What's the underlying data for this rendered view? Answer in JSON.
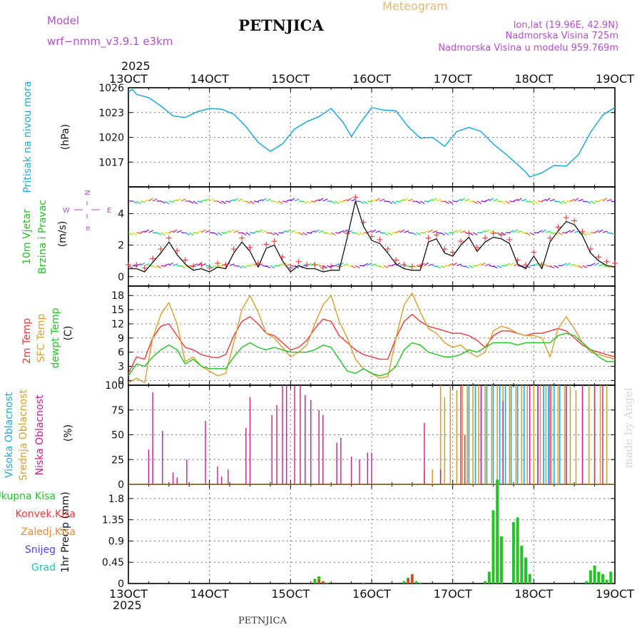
{
  "header": {
    "model_label": "Model",
    "model_name": "wrf−nmm_v3.9.1 e3km",
    "station": "PETNJICA",
    "meteogram_label": "Meteogram",
    "lonlat": "lon,lat (19.96E, 42.9N)",
    "altitude": "Nadmorska Visina 725m",
    "model_altitude": "Nadmorska Visina u modelu 959.769m",
    "footer_station": "PETNJICA",
    "credit": "made by Angel",
    "year": "2025"
  },
  "colors": {
    "pressure": "#1fa8e0",
    "temp2m": "#ee3a3a",
    "sfc": "#d8a030",
    "dewpt": "#22c422",
    "wind_obs": "#ee3a3a",
    "wind_line": "#000000",
    "cloud_high": "#1fa8e0",
    "cloud_mid": "#d8a030",
    "cloud_low": "#c81e8c",
    "precip_total": "#22c422",
    "precip_conv": "#ee3a3a",
    "precip_frozen": "#ee8833",
    "snow": "#4a44e0",
    "grad": "#22c0c0",
    "meta": "#b44fd0",
    "meteogram": "#e8b870"
  },
  "chart_data": {
    "type": "line",
    "x_ticks": [
      "13OCT",
      "14OCT",
      "15OCT",
      "16OCT",
      "17OCT",
      "18OCT",
      "19OCT"
    ],
    "x_range_days": [
      13,
      19
    ],
    "panels": [
      {
        "id": "pressure",
        "ylabel_1": "Pritisak na nivou mora",
        "ylabel_2": "(hPa)",
        "ylim": [
          1014,
          1026
        ],
        "yticks": [
          "1017",
          "1020",
          "1023",
          "1026"
        ],
        "series": [
          {
            "name": "Sea level pressure",
            "x": [
              13.0,
              13.05,
              13.1,
              13.25,
              13.4,
              13.55,
              13.7,
              13.85,
              14.0,
              14.15,
              14.3,
              14.45,
              14.6,
              14.75,
              14.9,
              15.05,
              15.2,
              15.35,
              15.5,
              15.65,
              15.75,
              15.85,
              16.0,
              16.15,
              16.3,
              16.45,
              16.6,
              16.75,
              16.9,
              17.05,
              17.2,
              17.35,
              17.5,
              17.65,
              17.8,
              17.9,
              17.95,
              18.1,
              18.25,
              18.4,
              18.55,
              18.7,
              18.85,
              19.0
            ],
            "y": [
              1025.5,
              1025.8,
              1025.2,
              1024.8,
              1023.8,
              1022.6,
              1022.4,
              1023.1,
              1023.5,
              1023.4,
              1022.8,
              1021.3,
              1019.4,
              1018.3,
              1019.2,
              1021.0,
              1021.9,
              1022.5,
              1023.5,
              1021.8,
              1020.1,
              1021.6,
              1023.6,
              1023.3,
              1023.2,
              1021.3,
              1019.9,
              1020.0,
              1018.9,
              1020.7,
              1021.2,
              1020.7,
              1019.2,
              1018.0,
              1016.7,
              1015.8,
              1015.2,
              1015.7,
              1016.6,
              1016.5,
              1017.9,
              1020.6,
              1022.7,
              1023.6
            ]
          }
        ]
      },
      {
        "id": "wind",
        "ylabel_1": "10m Vjetar",
        "ylabel_2": "Brzina i Pravac",
        "ylabel_3": "(m/s)",
        "ylim": [
          -0.6,
          5.7
        ],
        "yticks": [
          "0",
          "2",
          "4"
        ],
        "compass": "N",
        "compass_label_w": "W",
        "compass_label_e": "E",
        "compass_label_s": "α",
        "series": [
          {
            "name": "10m wind speed",
            "x": [
              13.0,
              13.1,
              13.2,
              13.3,
              13.4,
              13.5,
              13.6,
              13.7,
              13.8,
              13.9,
              14.0,
              14.1,
              14.2,
              14.3,
              14.4,
              14.5,
              14.6,
              14.7,
              14.8,
              14.9,
              15.0,
              15.1,
              15.2,
              15.3,
              15.4,
              15.5,
              15.6,
              15.7,
              15.8,
              15.9,
              16.0,
              16.1,
              16.2,
              16.3,
              16.4,
              16.5,
              16.6,
              16.7,
              16.8,
              16.9,
              17.0,
              17.1,
              17.2,
              17.3,
              17.4,
              17.5,
              17.6,
              17.7,
              17.8,
              17.9,
              18.0,
              18.1,
              18.2,
              18.3,
              18.4,
              18.5,
              18.6,
              18.7,
              18.8,
              18.9,
              19.0
            ],
            "y": [
              0.5,
              0.5,
              0.3,
              0.9,
              1.5,
              2.2,
              1.4,
              0.8,
              0.4,
              0.5,
              0.3,
              0.6,
              0.5,
              1.5,
              2.2,
              1.6,
              0.6,
              1.8,
              2.0,
              1.0,
              0.3,
              0.7,
              0.5,
              0.5,
              0.3,
              0.4,
              0.4,
              2.5,
              4.8,
              3.2,
              2.3,
              2.1,
              1.5,
              0.8,
              0.5,
              0.4,
              0.4,
              2.2,
              2.4,
              1.5,
              1.3,
              2.0,
              2.5,
              1.6,
              2.2,
              2.5,
              2.4,
              2.1,
              0.8,
              0.5,
              1.3,
              0.5,
              2.2,
              2.9,
              3.5,
              3.3,
              2.6,
              1.5,
              1.0,
              0.7,
              0.6
            ]
          }
        ]
      },
      {
        "id": "temperature",
        "ylabel_1": "2m Temp",
        "ylabel_2": "SFC Temp",
        "ylabel_3": "dewpt Temp",
        "ylabel_4": "(C)",
        "ylim": [
          -1,
          20
        ],
        "yticks": [
          "0",
          "3",
          "6",
          "9",
          "12",
          "15",
          "18"
        ],
        "series": [
          {
            "name": "2m Temp",
            "x": [
              13.0,
              13.1,
              13.2,
              13.3,
              13.4,
              13.5,
              13.6,
              13.7,
              13.8,
              13.9,
              14.0,
              14.1,
              14.2,
              14.3,
              14.4,
              14.5,
              14.6,
              14.7,
              14.8,
              14.9,
              15.0,
              15.1,
              15.2,
              15.3,
              15.4,
              15.5,
              15.6,
              15.7,
              15.8,
              15.9,
              16.0,
              16.1,
              16.2,
              16.3,
              16.4,
              16.5,
              16.6,
              16.7,
              16.8,
              16.9,
              17.0,
              17.1,
              17.2,
              17.3,
              17.4,
              17.5,
              17.6,
              17.7,
              17.8,
              17.9,
              18.0,
              18.1,
              18.2,
              18.3,
              18.4,
              18.5,
              18.6,
              18.7,
              18.8,
              18.9,
              19.0
            ],
            "y": [
              1.5,
              5.0,
              4.5,
              9.0,
              11.5,
              12.0,
              9.5,
              7.0,
              6.5,
              5.5,
              5.0,
              4.8,
              5.5,
              9.5,
              12.5,
              13.5,
              12.0,
              10.0,
              9.5,
              8.0,
              6.5,
              7.0,
              8.5,
              11.0,
              13.0,
              12.5,
              9.5,
              8.0,
              6.5,
              5.5,
              5.0,
              4.5,
              4.5,
              9.0,
              12.5,
              14.0,
              12.5,
              11.5,
              11.0,
              10.5,
              10.0,
              10.0,
              9.5,
              8.5,
              7.0,
              9.5,
              10.5,
              10.5,
              10.0,
              9.5,
              10.0,
              10.0,
              10.5,
              11.0,
              10.5,
              9.0,
              7.5,
              6.5,
              6.0,
              5.5,
              5.0
            ]
          },
          {
            "name": "SFC Temp",
            "x": [
              13.0,
              13.1,
              13.2,
              13.3,
              13.4,
              13.5,
              13.6,
              13.7,
              13.8,
              13.9,
              14.0,
              14.1,
              14.2,
              14.3,
              14.4,
              14.5,
              14.6,
              14.7,
              14.8,
              14.9,
              15.0,
              15.1,
              15.2,
              15.3,
              15.4,
              15.5,
              15.6,
              15.7,
              15.8,
              15.9,
              16.0,
              16.1,
              16.2,
              16.3,
              16.4,
              16.5,
              16.6,
              16.7,
              16.8,
              16.9,
              17.0,
              17.1,
              17.2,
              17.3,
              17.4,
              17.5,
              17.6,
              17.7,
              17.8,
              17.9,
              18.0,
              18.1,
              18.2,
              18.3,
              18.4,
              18.5,
              18.6,
              18.7,
              18.8,
              18.9,
              19.0
            ],
            "y": [
              -0.5,
              0.5,
              -0.5,
              9.0,
              14.0,
              16.5,
              12.0,
              4.0,
              5.0,
              3.0,
              2.0,
              1.0,
              1.5,
              8.0,
              15.0,
              18.0,
              14.5,
              10.0,
              9.0,
              7.0,
              5.0,
              6.0,
              7.5,
              12.0,
              16.0,
              18.0,
              12.5,
              9.0,
              4.5,
              2.5,
              1.5,
              0.5,
              0.8,
              9.0,
              16.0,
              18.5,
              14.5,
              11.0,
              10.0,
              8.0,
              7.0,
              7.5,
              6.0,
              5.0,
              6.0,
              10.5,
              11.5,
              11.0,
              10.0,
              9.5,
              9.5,
              9.0,
              5.0,
              11.0,
              13.5,
              11.0,
              8.0,
              6.0,
              5.5,
              5.0,
              4.5
            ]
          },
          {
            "name": "dewpt Temp",
            "x": [
              13.0,
              13.1,
              13.2,
              13.3,
              13.4,
              13.5,
              13.6,
              13.7,
              13.8,
              13.9,
              14.0,
              14.1,
              14.2,
              14.3,
              14.4,
              14.5,
              14.6,
              14.7,
              14.8,
              14.9,
              15.0,
              15.1,
              15.2,
              15.3,
              15.4,
              15.5,
              15.6,
              15.7,
              15.8,
              15.9,
              16.0,
              16.1,
              16.2,
              16.3,
              16.4,
              16.5,
              16.6,
              16.7,
              16.8,
              16.9,
              17.0,
              17.1,
              17.2,
              17.3,
              17.4,
              17.5,
              17.6,
              17.7,
              17.8,
              17.9,
              18.0,
              18.1,
              18.2,
              18.3,
              18.4,
              18.5,
              18.6,
              18.7,
              18.8,
              18.9,
              19.0
            ],
            "y": [
              1.0,
              3.5,
              3.0,
              5.0,
              6.5,
              7.5,
              6.5,
              3.5,
              4.5,
              3.0,
              2.5,
              2.5,
              2.5,
              5.0,
              7.0,
              8.0,
              7.0,
              6.5,
              7.0,
              6.5,
              6.0,
              6.0,
              6.0,
              6.5,
              7.5,
              7.0,
              4.5,
              2.0,
              1.5,
              2.5,
              1.5,
              1.0,
              1.5,
              3.0,
              6.5,
              8.0,
              7.5,
              6.0,
              5.5,
              5.0,
              5.0,
              5.5,
              6.5,
              6.0,
              7.0,
              8.0,
              8.0,
              8.0,
              7.5,
              8.0,
              8.0,
              8.0,
              8.0,
              9.5,
              10.0,
              9.5,
              8.0,
              6.5,
              5.0,
              4.0,
              4.0
            ]
          }
        ]
      },
      {
        "id": "clouds",
        "ylabel_1": "Visoka Oblacnost",
        "ylabel_2": "Srednja Oblacnost",
        "ylabel_3": "Niska Oblacnost",
        "ylabel_4": "(%)",
        "ylim": [
          0,
          100
        ],
        "yticks": [
          "0",
          "25",
          "50",
          "75",
          "100"
        ],
        "low": {
          "name": "Niska Oblacnost",
          "x": [
            13.25,
            13.3,
            13.42,
            13.55,
            13.6,
            13.72,
            13.95,
            14.1,
            14.15,
            14.23,
            14.45,
            14.5,
            14.77,
            14.83,
            14.9,
            14.95,
            15.05,
            15.12,
            15.18,
            15.25,
            15.35,
            15.4,
            15.57,
            15.62,
            15.75,
            15.85,
            15.95,
            16.0,
            16.65,
            16.85,
            17.1,
            17.15,
            17.35,
            17.62,
            17.95,
            18.05,
            18.2,
            18.4,
            18.6,
            18.75,
            18.85
          ],
          "y": [
            35,
            93,
            54,
            12,
            7,
            25,
            64,
            18,
            8,
            15,
            57,
            88,
            70,
            80,
            100,
            100,
            100,
            100,
            90,
            85,
            75,
            70,
            42,
            47,
            28,
            25,
            32,
            32,
            62,
            15,
            100,
            50,
            100,
            84,
            100,
            100,
            100,
            100,
            100,
            100,
            100
          ]
        },
        "mid": {
          "name": "Srednja Oblacnost",
          "x": [
            16.65,
            16.75,
            16.85,
            16.9,
            16.97,
            17.05,
            17.12,
            17.18,
            17.25,
            17.32,
            17.4,
            17.48,
            17.55,
            17.62,
            17.7,
            17.78,
            17.85,
            17.92,
            18.0,
            18.08,
            18.15,
            18.22,
            18.3,
            18.38,
            18.45,
            18.52,
            18.6,
            18.68,
            18.75,
            18.82,
            18.9
          ],
          "y": [
            13,
            15,
            100,
            88,
            100,
            95,
            100,
            100,
            100,
            100,
            100,
            100,
            100,
            100,
            100,
            100,
            100,
            100,
            100,
            100,
            100,
            100,
            100,
            100,
            100,
            95,
            100,
            100,
            100,
            100,
            100
          ]
        },
        "high": {
          "name": "Visoka Oblacnost",
          "x": [
            17.2,
            17.28,
            17.35,
            17.42,
            17.5,
            17.58,
            17.65,
            17.72,
            17.8,
            17.88,
            18.05,
            18.12,
            18.18,
            18.25,
            18.32,
            18.4
          ],
          "y": [
            100,
            100,
            100,
            100,
            100,
            100,
            100,
            100,
            100,
            100,
            100,
            100,
            100,
            100,
            100,
            100
          ]
        }
      },
      {
        "id": "precip",
        "ylabel_1": "1hr Precip (mm)",
        "ylim": [
          0,
          2.1
        ],
        "yticks": [
          "0",
          "0.45",
          "0.9",
          "1.35",
          "1.8"
        ],
        "legend": [
          "Ukupna Kisa",
          "Konvek.Kisa",
          "Zaledj.Kisa",
          "Snijeg",
          "Grad"
        ],
        "total": {
          "x": [
            14.95,
            15.3,
            15.35,
            15.4,
            15.45,
            15.9,
            16.4,
            16.45,
            16.5,
            16.55,
            16.6,
            17.4,
            17.45,
            17.5,
            17.55,
            17.6,
            17.75,
            17.8,
            17.85,
            17.9,
            17.95,
            18.65,
            18.7,
            18.75,
            18.8,
            18.85,
            18.9,
            18.95
          ],
          "y": [
            0.02,
            0.1,
            0.15,
            0.05,
            0.02,
            0.02,
            0.05,
            0.12,
            0.2,
            0.05,
            0.02,
            0.05,
            0.25,
            1.55,
            2.2,
            1.0,
            1.3,
            1.4,
            0.8,
            0.55,
            0.2,
            0.05,
            0.28,
            0.38,
            0.25,
            0.2,
            0.08,
            0.25
          ]
        },
        "conv": {
          "x": [
            15.35,
            15.4,
            16.45,
            16.5
          ],
          "y": [
            0.08,
            0.04,
            0.1,
            0.18
          ]
        }
      }
    ]
  }
}
